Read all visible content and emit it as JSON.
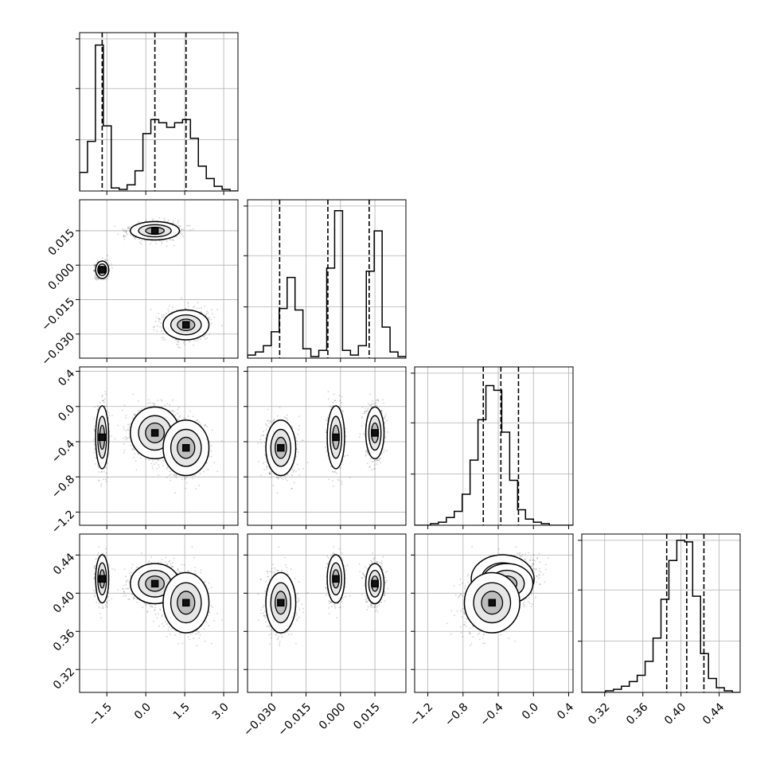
{
  "chart_data": {
    "type": "corner",
    "grid": true,
    "axes_ticks": {
      "p0": [
        "-1.5",
        "0.0",
        "1.5",
        "3.0"
      ],
      "p1": [
        "-0.030",
        "-0.015",
        "0.000",
        "0.015"
      ],
      "p2": [
        "-1.2",
        "-0.8",
        "-0.4",
        "0.0",
        "0.4"
      ],
      "p3": [
        "0.32",
        "0.36",
        "0.40",
        "0.44"
      ]
    },
    "ranges": {
      "p0": [
        -2.55,
        3.55
      ],
      "p1": [
        -0.0405,
        0.0285
      ],
      "p2": [
        -1.35,
        0.45
      ],
      "p3": [
        0.296,
        0.462
      ]
    },
    "quantiles": {
      "p0": [
        -1.68,
        0.35,
        1.55
      ],
      "p1": [
        -0.0265,
        -0.0055,
        0.0125
      ],
      "p2": [
        -0.57,
        -0.37,
        -0.17
      ],
      "p3": [
        0.385,
        0.406,
        0.424
      ]
    },
    "histograms": {
      "p0": {
        "edges_range": [
          -2.55,
          3.55
        ],
        "counts": [
          0.12,
          0.32,
          0.94,
          0.42,
          0.02,
          0.01,
          0.04,
          0.13,
          0.37,
          0.46,
          0.44,
          0.41,
          0.44,
          0.46,
          0.34,
          0.16,
          0.08,
          0.03,
          0.01,
          0.0
        ]
      },
      "p1": {
        "edges_range": [
          -0.0405,
          0.0285
        ],
        "counts": [
          0.02,
          0.04,
          0.08,
          0.17,
          0.32,
          0.52,
          0.31,
          0.06,
          0.01,
          0.05,
          0.58,
          0.95,
          0.05,
          0.02,
          0.08,
          0.56,
          0.82,
          0.2,
          0.04,
          0.01
        ]
      },
      "p2": {
        "edges_range": [
          -1.35,
          0.45
        ],
        "counts": [
          0.0,
          0.0,
          0.01,
          0.02,
          0.05,
          0.09,
          0.2,
          0.42,
          0.68,
          0.9,
          0.87,
          0.6,
          0.29,
          0.1,
          0.04,
          0.02,
          0.01,
          0.0,
          0.0,
          0.0
        ]
      },
      "p3": {
        "edges_range": [
          0.296,
          0.462
        ],
        "counts": [
          0.0,
          0.0,
          0.0,
          0.01,
          0.02,
          0.04,
          0.07,
          0.11,
          0.2,
          0.35,
          0.6,
          0.85,
          0.98,
          0.97,
          0.62,
          0.25,
          0.09,
          0.03,
          0.01,
          0.0
        ]
      }
    },
    "modes": [
      {
        "p0": -1.68,
        "p1": -0.002,
        "p2": -0.35,
        "p3": 0.415,
        "sx": 0.12,
        "sy": 0.0018,
        "s2": 0.17,
        "s3": 0.012,
        "w": 0.28
      },
      {
        "p0": 0.35,
        "p1": 0.015,
        "p2": -0.3,
        "p3": 0.41,
        "sx": 0.45,
        "sy": 0.0019,
        "s2": 0.14,
        "s3": 0.01,
        "w": 0.36
      },
      {
        "p0": 1.55,
        "p1": -0.026,
        "p2": -0.47,
        "p3": 0.39,
        "sx": 0.42,
        "sy": 0.0031,
        "s2": 0.15,
        "s3": 0.015,
        "w": 0.36
      }
    ]
  }
}
